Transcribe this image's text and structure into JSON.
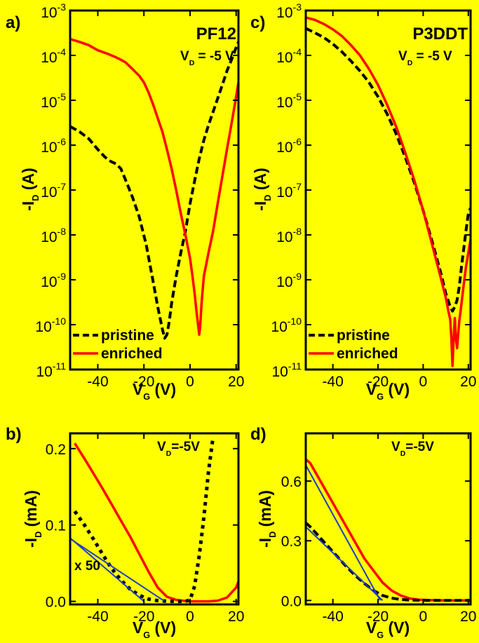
{
  "colors": {
    "background": "#ffff00",
    "pristine": "#000000",
    "enriched": "#ff0000",
    "fit": "#1e3cc8"
  },
  "chart_data": [
    {
      "id": "a",
      "type": "line",
      "panel_label": "a)",
      "title": "PF12",
      "annotation": {
        "main": "V",
        "sub": "D",
        "rest": " = -5 V"
      },
      "xlabel": {
        "main": "V",
        "sub": "G",
        "rest": " (V)"
      },
      "ylabel": {
        "main": "-I",
        "sub": "D",
        "rest": " (A)"
      },
      "yscale": "log",
      "xlim": [
        -52,
        21
      ],
      "ylim": [
        1e-11,
        0.001
      ],
      "xticks": [
        -40,
        -20,
        0,
        20
      ],
      "xticklabels": [
        "-40",
        "-20",
        "0",
        "20"
      ],
      "yticks": [
        1e-11,
        1e-10,
        1e-09,
        1e-08,
        1e-07,
        1e-06,
        1e-05,
        0.0001,
        0.001
      ],
      "yticklabels": [
        {
          "base": "10",
          "exp": "-11"
        },
        {
          "base": "10",
          "exp": "-10"
        },
        {
          "base": "10",
          "exp": "-9"
        },
        {
          "base": "10",
          "exp": "-8"
        },
        {
          "base": "10",
          "exp": "-7"
        },
        {
          "base": "10",
          "exp": "-6"
        },
        {
          "base": "10",
          "exp": "-5"
        },
        {
          "base": "10",
          "exp": "-4"
        },
        {
          "base": "10",
          "exp": "-3"
        }
      ],
      "legend": {
        "position": "bottom-left",
        "entries": [
          "pristine",
          "enriched"
        ]
      },
      "series": [
        {
          "name": "pristine",
          "style": "dashed",
          "color": "#000000",
          "x": [
            -52,
            -48,
            -44,
            -40,
            -37,
            -35,
            -32,
            -30,
            -28,
            -25,
            -22,
            -19,
            -16,
            -14,
            -12,
            -11,
            -10,
            -9,
            -8,
            -6,
            -4,
            -2,
            0,
            2,
            4,
            6,
            8,
            10,
            12,
            14,
            16,
            18,
            20,
            21
          ],
          "y": [
            2.6e-06,
            2e-06,
            1.4e-06,
            8e-07,
            5.5e-07,
            4.5e-07,
            3.8e-07,
            3e-07,
            1.7e-07,
            7e-08,
            2.5e-08,
            6e-09,
            9e-10,
            2.5e-10,
            8e-11,
            5e-11,
            6e-11,
            1.2e-10,
            3e-10,
            1.2e-09,
            4e-09,
            1.2e-08,
            5e-08,
            1.6e-07,
            5e-07,
            1.3e-06,
            2.8e-06,
            5.5e-06,
            1.1e-05,
            2.2e-05,
            4.5e-05,
            8e-05,
            0.00015,
            0.0002
          ]
        },
        {
          "name": "enriched",
          "style": "solid",
          "color": "#ff0000",
          "x": [
            -52,
            -48,
            -44,
            -40,
            -36,
            -32,
            -30,
            -28,
            -25,
            -22,
            -20,
            -18,
            -16,
            -14,
            -12,
            -10,
            -8,
            -6,
            -4,
            -2,
            0,
            1,
            2,
            3,
            3.6,
            4,
            4.4,
            5,
            6,
            8,
            10,
            12,
            14,
            16,
            18,
            20,
            21
          ],
          "y": [
            0.00023,
            0.0002,
            0.00017,
            0.00013,
            0.00011,
            9e-05,
            8e-05,
            7e-05,
            5e-05,
            3.5e-05,
            2.5e-05,
            1.5e-05,
            8e-06,
            4e-06,
            2e-06,
            8e-07,
            3e-07,
            1e-07,
            3e-08,
            1e-08,
            3e-09,
            1.3e-09,
            5e-10,
            1.6e-10,
            9e-11,
            6e-11,
            9e-11,
            3e-10,
            1.2e-09,
            4e-09,
            1.2e-08,
            5e-08,
            2e-07,
            8e-07,
            3e-06,
            1.2e-05,
            2.5e-05
          ]
        }
      ]
    },
    {
      "id": "c",
      "type": "line",
      "panel_label": "c)",
      "title": "P3DDT",
      "annotation": {
        "main": "V",
        "sub": "D",
        "rest": " = -5 V"
      },
      "xlabel": {
        "main": "V",
        "sub": "G",
        "rest": " (V)"
      },
      "ylabel": {
        "main": "-I",
        "sub": "D",
        "rest": " (A)"
      },
      "yscale": "log",
      "xlim": [
        -52,
        21
      ],
      "ylim": [
        1e-11,
        0.001
      ],
      "xticks": [
        -40,
        -20,
        0,
        20
      ],
      "xticklabels": [
        "-40",
        "-20",
        "0",
        "20"
      ],
      "yticks": [
        1e-11,
        1e-10,
        1e-09,
        1e-08,
        1e-07,
        1e-06,
        1e-05,
        0.0001,
        0.001
      ],
      "yticklabels": [
        {
          "base": "10",
          "exp": "-11"
        },
        {
          "base": "10",
          "exp": "-10"
        },
        {
          "base": "10",
          "exp": "-9"
        },
        {
          "base": "10",
          "exp": "-8"
        },
        {
          "base": "10",
          "exp": "-7"
        },
        {
          "base": "10",
          "exp": "-6"
        },
        {
          "base": "10",
          "exp": "-5"
        },
        {
          "base": "10",
          "exp": "-4"
        },
        {
          "base": "10",
          "exp": "-3"
        }
      ],
      "legend": {
        "position": "bottom-left",
        "entries": [
          "pristine",
          "enriched"
        ]
      },
      "series": [
        {
          "name": "pristine",
          "style": "dashed",
          "color": "#000000",
          "x": [
            -52,
            -48,
            -44,
            -40,
            -36,
            -32,
            -28,
            -24,
            -20,
            -16,
            -12,
            -8,
            -4,
            0,
            4,
            8,
            10,
            12,
            13,
            14,
            15,
            16,
            17,
            18,
            19,
            20,
            21
          ],
          "y": [
            0.0004,
            0.00032,
            0.00025,
            0.00018,
            0.00012,
            7.5e-05,
            4.5e-05,
            2.5e-05,
            1.2e-05,
            5e-06,
            1.8e-06,
            5.5e-07,
            1.5e-07,
            3.5e-08,
            7e-09,
            1.3e-09,
            5e-10,
            2.5e-10,
            2e-10,
            2.5e-10,
            3.5e-10,
            7e-10,
            2e-09,
            5e-09,
            1.3e-08,
            3e-08,
            4e-08
          ]
        },
        {
          "name": "enriched",
          "style": "solid",
          "color": "#ff0000",
          "x": [
            -52,
            -48,
            -44,
            -40,
            -36,
            -32,
            -28,
            -24,
            -20,
            -16,
            -12,
            -8,
            -4,
            0,
            4,
            8,
            10,
            11,
            12,
            12.5,
            13,
            13.5,
            14,
            14.5,
            15,
            15.5,
            16,
            17,
            18,
            19,
            20,
            21
          ],
          "y": [
            0.0007,
            0.00062,
            0.0005,
            0.00038,
            0.00027,
            0.00017,
            0.0001,
            5e-05,
            2.2e-05,
            8e-06,
            2.6e-06,
            7e-07,
            1.7e-07,
            3.5e-08,
            6e-09,
            1e-09,
            4e-10,
            2.2e-10,
            1.3e-10,
            5e-11,
            1.2e-11,
            5e-11,
            1.4e-10,
            5e-11,
            3e-11,
            6e-11,
            1.2e-10,
            3e-10,
            8e-10,
            2e-09,
            4e-09,
            8e-09
          ]
        }
      ]
    },
    {
      "id": "b",
      "type": "line",
      "panel_label": "b)",
      "annotation": {
        "main": "V",
        "sub": "D",
        "rest": "=-5V"
      },
      "extra_annotation": "x 50",
      "xlabel": {
        "main": "V",
        "sub": "G",
        "rest": " (V)"
      },
      "ylabel": {
        "main": "-I",
        "sub": "D",
        "rest": " (mA)"
      },
      "xlim": [
        -52,
        21
      ],
      "ylim": [
        -0.004,
        0.22
      ],
      "xticks": [
        -40,
        -20,
        0,
        20
      ],
      "xticklabels": [
        "-40",
        "-20",
        "0",
        "20"
      ],
      "yticks": [
        0,
        0.1,
        0.2
      ],
      "yticklabels": [
        "0.0",
        "0.1",
        "0.2"
      ],
      "series": [
        {
          "name": "enriched",
          "style": "solid",
          "color": "#ff0000",
          "x": [
            -50,
            -46,
            -42,
            -38,
            -34,
            -30,
            -26,
            -22,
            -18,
            -14,
            -10,
            -6,
            -2,
            0,
            4,
            8,
            12,
            16,
            20,
            21
          ],
          "y": [
            0.207,
            0.188,
            0.168,
            0.148,
            0.127,
            0.106,
            0.085,
            0.062,
            0.039,
            0.018,
            0.006,
            0.002,
            0.0005,
            0.0,
            0.0,
            0.0,
            0.001,
            0.005,
            0.018,
            0.026
          ]
        },
        {
          "name": "pristine",
          "style": "dotted",
          "color": "#000000",
          "x": [
            -50,
            -46,
            -42,
            -38,
            -34,
            -30,
            -26,
            -22,
            -18,
            -14,
            -10,
            -6,
            -2,
            0,
            2,
            4,
            6,
            8,
            10
          ],
          "y": [
            0.118,
            0.101,
            0.082,
            0.062,
            0.043,
            0.028,
            0.016,
            0.008,
            0.003,
            0.001,
            0.0003,
            0.0,
            0.0,
            0.002,
            0.02,
            0.06,
            0.11,
            0.17,
            0.215
          ]
        },
        {
          "name": "",
          "style": "fit",
          "color": "#1e3cc8",
          "x": [
            -52,
            -11
          ],
          "y": [
            0.082,
            0.0
          ]
        },
        {
          "name": "",
          "style": "fit",
          "color": "#1e3cc8",
          "x": [
            -52,
            -20
          ],
          "y": [
            0.083,
            0.0
          ]
        }
      ]
    },
    {
      "id": "d",
      "type": "line",
      "panel_label": "d)",
      "annotation": {
        "main": "V",
        "sub": "D",
        "rest": "=-5V"
      },
      "xlabel": {
        "main": "V",
        "sub": "G",
        "rest": " (V)"
      },
      "ylabel": {
        "main": "-I",
        "sub": "D",
        "rest": " (mA)"
      },
      "xlim": [
        -52,
        21
      ],
      "ylim": [
        -0.02,
        0.84
      ],
      "xticks": [
        -40,
        -20,
        0,
        20
      ],
      "xticklabels": [
        "-40",
        "-20",
        "0",
        "20"
      ],
      "yticks": [
        0,
        0.3,
        0.6
      ],
      "yticklabels": [
        "0.0",
        "0.3",
        "0.6"
      ],
      "series": [
        {
          "name": "enriched",
          "style": "solid",
          "color": "#ff0000",
          "x": [
            -52,
            -50,
            -46,
            -42,
            -38,
            -34,
            -30,
            -26,
            -22,
            -18,
            -14,
            -10,
            -6,
            -2,
            2,
            6,
            10,
            14,
            18,
            21
          ],
          "y": [
            0.71,
            0.69,
            0.61,
            0.53,
            0.45,
            0.37,
            0.29,
            0.21,
            0.15,
            0.09,
            0.05,
            0.025,
            0.01,
            0.004,
            0.002,
            0.001,
            0.0,
            0.0,
            0.0,
            0.0
          ]
        },
        {
          "name": "pristine",
          "style": "dashed",
          "color": "#000000",
          "x": [
            -52,
            -50,
            -46,
            -42,
            -38,
            -34,
            -30,
            -26,
            -22,
            -18,
            -14,
            -10,
            -6,
            -2,
            2,
            6,
            10,
            14,
            18,
            21
          ],
          "y": [
            0.39,
            0.37,
            0.32,
            0.27,
            0.22,
            0.17,
            0.125,
            0.085,
            0.05,
            0.025,
            0.012,
            0.005,
            0.002,
            0.001,
            0.0,
            0.0,
            0.0,
            0.0,
            0.0,
            0.0
          ]
        },
        {
          "name": "",
          "style": "fit",
          "color": "#1e3cc8",
          "x": [
            -52,
            -19
          ],
          "y": [
            0.68,
            0.0
          ]
        },
        {
          "name": "",
          "style": "fit",
          "color": "#1e3cc8",
          "x": [
            -52,
            -18
          ],
          "y": [
            0.37,
            0.0
          ]
        }
      ]
    }
  ]
}
